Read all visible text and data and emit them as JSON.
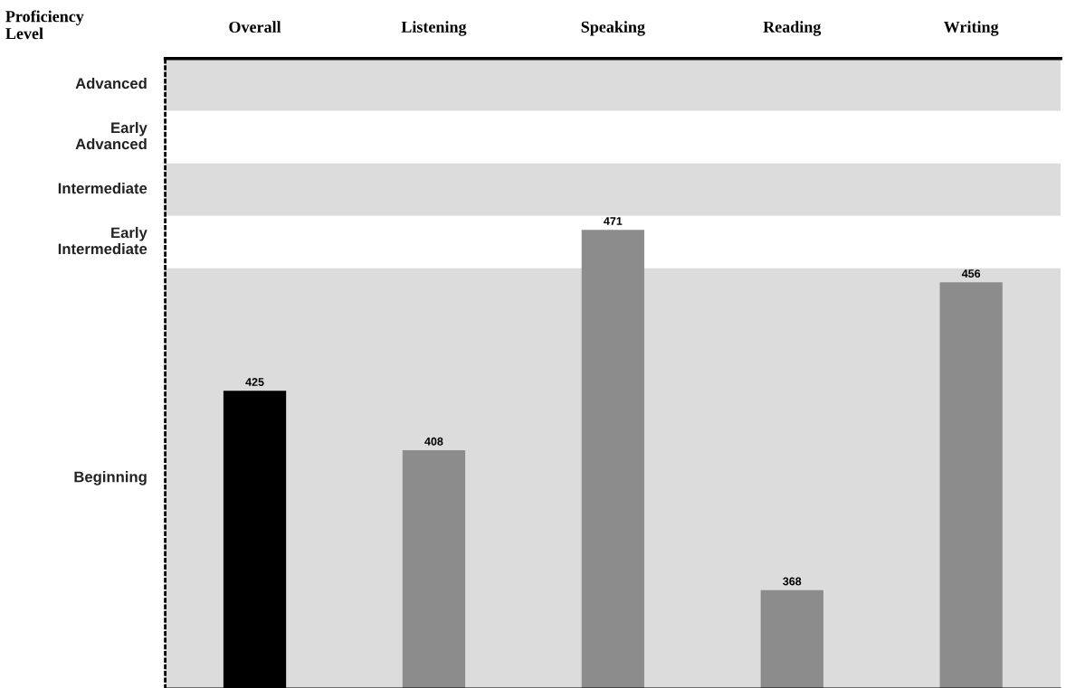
{
  "chart_data": {
    "type": "bar",
    "ylabel": "Proficiency Level",
    "categories": [
      "Overall",
      "Listening",
      "Speaking",
      "Reading",
      "Writing"
    ],
    "values": [
      425,
      408,
      471,
      368,
      456
    ],
    "colors": [
      "#000000",
      "#8c8c8c",
      "#8c8c8c",
      "#8c8c8c",
      "#8c8c8c"
    ],
    "data_labels": true,
    "ylim": [
      340,
      520
    ],
    "bands": [
      {
        "axis": "y",
        "from": 505,
        "to": 520,
        "label": "Advanced",
        "color": "#dcdcdc"
      },
      {
        "axis": "y",
        "from": 490,
        "to": 505,
        "label": "Early\nAdvanced",
        "color": "#ffffff"
      },
      {
        "axis": "y",
        "from": 475,
        "to": 490,
        "label": "Intermediate",
        "color": "#dcdcdc"
      },
      {
        "axis": "y",
        "from": 460,
        "to": 475,
        "label": "Early\nIntermediate",
        "color": "#ffffff"
      },
      {
        "axis": "y",
        "from": 340,
        "to": 460,
        "label": "Beginning",
        "color": "#dcdcdc"
      }
    ],
    "grid": false
  }
}
